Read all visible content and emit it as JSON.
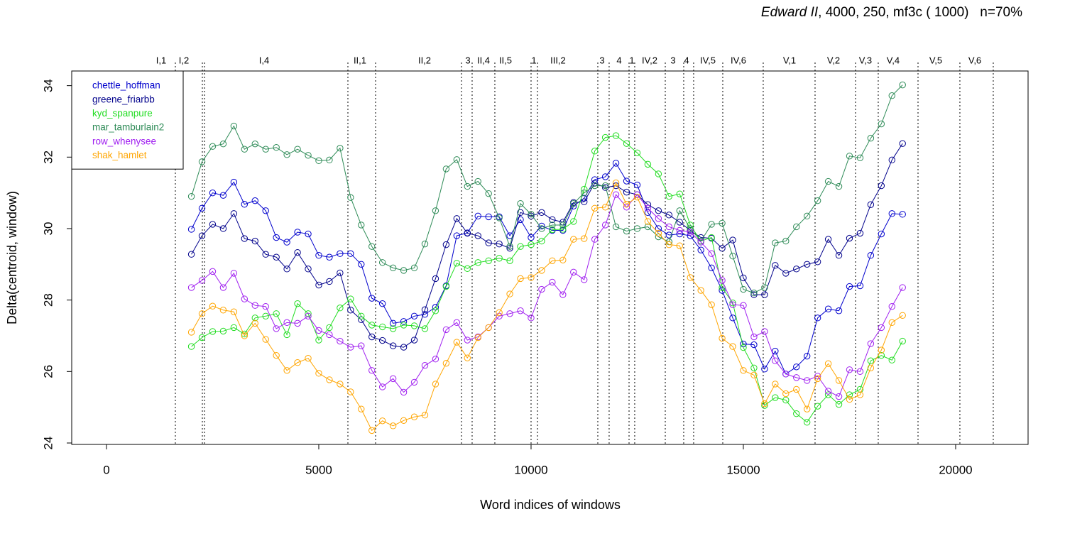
{
  "chart_data": {
    "type": "line",
    "title_italic": "Edward II",
    "title_rest": ", 4000, 250, mf3c ( 1000)   n=70%",
    "x_label": "Word indices of windows",
    "y_label": "Delta(centroid, window)",
    "xlim": [
      -819,
      21706
    ],
    "ylim": [
      23.96,
      34.41
    ],
    "xticks": [
      0,
      5000,
      10000,
      15000,
      20000
    ],
    "yticks": [
      24,
      26,
      28,
      30,
      32,
      34
    ],
    "legend": "topleft",
    "marker": "open-circle",
    "x": [
      2000,
      2250,
      2500,
      2750,
      3000,
      3250,
      3500,
      3750,
      4000,
      4250,
      4500,
      4750,
      5000,
      5250,
      5500,
      5750,
      6000,
      6250,
      6500,
      6750,
      7000,
      7250,
      7500,
      7750,
      8000,
      8250,
      8500,
      8750,
      9000,
      9250,
      9500,
      9750,
      10000,
      10250,
      10500,
      10750,
      11000,
      11250,
      11500,
      11750,
      12000,
      12250,
      12500,
      12750,
      13000,
      13250,
      13500,
      13750,
      14000,
      14250,
      14500,
      14750,
      15000,
      15250,
      15500,
      15750,
      16000,
      16250,
      16500,
      16750,
      17000,
      17250,
      17500,
      17750,
      18000,
      18250,
      18500,
      18750
    ],
    "series": [
      {
        "name": "chettle_hoffman",
        "color": "#0000cd",
        "values": [
          29.98,
          30.57,
          31.0,
          30.93,
          31.3,
          30.68,
          30.78,
          30.5,
          29.75,
          29.62,
          29.9,
          29.85,
          29.25,
          29.2,
          29.3,
          29.3,
          29.0,
          28.05,
          27.9,
          27.35,
          27.4,
          27.55,
          27.6,
          27.8,
          28.4,
          29.8,
          29.88,
          30.35,
          30.33,
          30.33,
          29.8,
          30.25,
          29.75,
          30.07,
          29.95,
          29.95,
          30.63,
          30.85,
          31.37,
          31.45,
          31.83,
          31.33,
          31.22,
          30.45,
          30.0,
          29.82,
          29.85,
          29.8,
          29.4,
          28.9,
          28.27,
          27.5,
          26.77,
          26.75,
          26.07,
          26.57,
          25.93,
          26.13,
          26.43,
          27.5,
          27.75,
          27.7,
          28.38,
          28.4,
          29.25,
          29.85,
          30.42,
          30.4
        ]
      },
      {
        "name": "greene_friarbb",
        "color": "#00008b",
        "values": [
          29.28,
          29.8,
          30.12,
          30.0,
          30.42,
          29.72,
          29.65,
          29.28,
          29.2,
          28.87,
          29.33,
          28.87,
          28.42,
          28.52,
          28.76,
          27.72,
          27.45,
          26.97,
          26.87,
          26.72,
          26.68,
          26.88,
          27.73,
          28.6,
          29.55,
          30.28,
          29.87,
          29.8,
          29.6,
          29.57,
          29.45,
          30.45,
          30.35,
          30.45,
          30.25,
          30.18,
          30.73,
          30.75,
          31.27,
          31.15,
          31.2,
          31.02,
          30.95,
          30.67,
          30.5,
          30.38,
          30.18,
          29.95,
          29.75,
          29.73,
          29.45,
          29.68,
          28.62,
          28.15,
          28.15,
          28.97,
          28.75,
          28.87,
          29.0,
          29.07,
          29.7,
          29.25,
          29.73,
          29.87,
          30.67,
          31.2,
          31.92,
          32.38
        ]
      },
      {
        "name": "kyd_spanpure",
        "color": "#22dd22",
        "values": [
          26.7,
          26.95,
          27.12,
          27.13,
          27.23,
          27.05,
          27.5,
          27.55,
          27.62,
          27.03,
          27.9,
          27.62,
          26.88,
          27.23,
          27.78,
          28.03,
          27.55,
          27.3,
          27.25,
          27.2,
          27.3,
          27.28,
          27.2,
          27.7,
          28.38,
          29.03,
          28.88,
          29.05,
          29.1,
          29.17,
          29.1,
          29.5,
          29.55,
          29.65,
          29.97,
          29.98,
          30.2,
          31.1,
          32.17,
          32.55,
          32.6,
          32.38,
          32.12,
          31.8,
          31.53,
          30.9,
          30.97,
          30.1,
          29.65,
          29.75,
          28.35,
          27.92,
          26.67,
          26.1,
          25.05,
          25.27,
          25.2,
          24.82,
          24.58,
          25.03,
          25.35,
          25.08,
          25.35,
          25.5,
          26.3,
          26.45,
          26.32,
          26.85
        ]
      },
      {
        "name": "mar_tamburlain2",
        "color": "#2e8b57",
        "values": [
          30.9,
          31.87,
          32.3,
          32.37,
          32.87,
          32.22,
          32.37,
          32.22,
          32.27,
          32.07,
          32.22,
          32.05,
          31.9,
          31.92,
          32.25,
          30.87,
          30.1,
          29.5,
          29.05,
          28.9,
          28.83,
          28.9,
          29.57,
          30.5,
          31.67,
          31.93,
          31.18,
          31.32,
          30.98,
          30.3,
          29.5,
          30.7,
          30.4,
          30.0,
          30.1,
          30.1,
          30.7,
          31.0,
          31.2,
          31.2,
          30.05,
          29.93,
          30.0,
          30.05,
          29.77,
          29.63,
          30.5,
          30.0,
          29.65,
          30.12,
          30.15,
          29.23,
          28.3,
          28.2,
          28.35,
          29.6,
          29.65,
          30.05,
          30.35,
          30.78,
          31.32,
          31.18,
          32.03,
          31.98,
          32.53,
          32.93,
          33.72,
          34.02
        ]
      },
      {
        "name": "row_whenysee",
        "color": "#a020f0",
        "values": [
          28.35,
          28.55,
          28.8,
          28.35,
          28.75,
          28.03,
          27.85,
          27.82,
          27.2,
          27.37,
          27.35,
          27.55,
          27.15,
          27.03,
          26.85,
          26.68,
          26.72,
          26.03,
          25.57,
          25.8,
          25.42,
          25.7,
          26.17,
          26.35,
          27.17,
          27.37,
          26.88,
          26.97,
          27.23,
          27.55,
          27.62,
          27.7,
          27.5,
          28.3,
          28.5,
          28.15,
          28.78,
          28.57,
          29.7,
          30.1,
          30.95,
          30.6,
          30.95,
          30.57,
          30.28,
          30.05,
          29.95,
          29.9,
          29.62,
          29.3,
          28.55,
          27.87,
          27.85,
          26.97,
          27.12,
          26.3,
          25.93,
          25.83,
          25.75,
          25.87,
          25.45,
          25.3,
          26.05,
          26.0,
          26.78,
          27.23,
          27.82,
          28.35
        ]
      },
      {
        "name": "shak_hamlet",
        "color": "#ffa500",
        "values": [
          27.1,
          27.62,
          27.83,
          27.72,
          27.67,
          27.0,
          27.35,
          26.9,
          26.45,
          26.03,
          26.25,
          26.37,
          25.95,
          25.77,
          25.65,
          25.43,
          24.95,
          24.35,
          24.62,
          24.48,
          24.63,
          24.73,
          24.78,
          25.65,
          26.23,
          26.82,
          26.38,
          26.95,
          27.23,
          27.65,
          28.17,
          28.6,
          28.63,
          28.83,
          29.1,
          29.12,
          29.7,
          29.72,
          30.57,
          30.6,
          31.28,
          30.68,
          30.88,
          30.2,
          29.87,
          29.55,
          29.52,
          28.63,
          28.27,
          27.87,
          26.93,
          26.7,
          26.03,
          25.9,
          25.1,
          25.65,
          25.38,
          25.5,
          24.95,
          25.8,
          26.22,
          25.75,
          25.22,
          25.35,
          26.1,
          26.6,
          27.37,
          27.57
        ]
      }
    ],
    "scene_boundaries": [
      1622,
      2258,
      2308,
      5686,
      6338,
      8361,
      8612,
      9147,
      10000,
      10151,
      11572,
      11839,
      12308,
      12441,
      13161,
      13595,
      13829,
      14515,
      15468,
      16689,
      17642,
      18177,
      19114,
      20100,
      20886
    ],
    "scene_labels": [
      {
        "label": "I,1",
        "x": 1288
      },
      {
        "label": "I,2",
        "x": 1823
      },
      {
        "label": "I,4",
        "x": 3712
      },
      {
        "label": "II,1",
        "x": 5970
      },
      {
        "label": "II,2",
        "x": 7492
      },
      {
        "label": "3",
        "x": 8512
      },
      {
        "label": "II,4",
        "x": 8880
      },
      {
        "label": "II,5",
        "x": 9398
      },
      {
        "label": "1",
        "x": 10067
      },
      {
        "label": "III,2",
        "x": 10635
      },
      {
        "label": "3",
        "x": 11672
      },
      {
        "label": "4",
        "x": 12074
      },
      {
        "label": "1",
        "x": 12375
      },
      {
        "label": "IV,2",
        "x": 12793
      },
      {
        "label": "3",
        "x": 13344
      },
      {
        "label": "4",
        "x": 13662
      },
      {
        "label": "IV,5",
        "x": 14164
      },
      {
        "label": "IV,6",
        "x": 14883
      },
      {
        "label": "V,1",
        "x": 16087
      },
      {
        "label": "V,2",
        "x": 17124
      },
      {
        "label": "V,3",
        "x": 17876
      },
      {
        "label": "V,4",
        "x": 18528
      },
      {
        "label": "V,5",
        "x": 19532
      },
      {
        "label": "V,6",
        "x": 20452
      }
    ]
  }
}
